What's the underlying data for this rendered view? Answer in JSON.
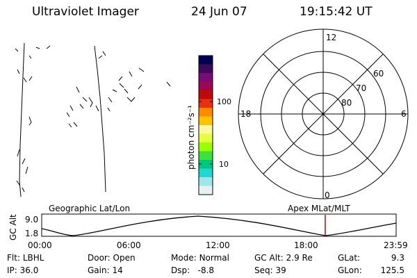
{
  "header": {
    "instrument": "Ultraviolet Imager",
    "date": "24 Jun 07",
    "time": "19:15:42 UT"
  },
  "colorbar": {
    "label": "photon cm⁻²s⁻¹",
    "ticks": [
      "100",
      "10"
    ],
    "colors": [
      "#000050",
      "#3c0a5a",
      "#7a0a78",
      "#9b0a50",
      "#c00a0a",
      "#e83010",
      "#ff8a00",
      "#ffc400",
      "#fff7a0",
      "#e6ff40",
      "#9aff00",
      "#3ee03c",
      "#00c880",
      "#20d8d0",
      "#a0e6e8",
      "#e6f2f2"
    ]
  },
  "polar": {
    "clock_labels": [
      "12",
      "18",
      "6",
      "0"
    ],
    "lat_labels": [
      "60",
      "70",
      "80"
    ]
  },
  "track": {
    "left_title": "Geographic Lat/Lon",
    "right_title": "Apex  MLat/MLT",
    "y_axis_label": "GC Alt",
    "y_ticks": [
      "9.0",
      "1.8"
    ],
    "x_ticks": [
      "00:00",
      "06:00",
      "12:00",
      "18:00",
      "23:59"
    ],
    "current_marker_color": "#cc0000"
  },
  "status": {
    "row1": [
      {
        "key": "Flt:",
        "value": "LBHL"
      },
      {
        "key": "Door:",
        "value": "Open"
      },
      {
        "key": "Mode:",
        "value": "Normal"
      },
      {
        "key": "GC Alt:",
        "value": "2.9 Re"
      },
      {
        "key": "GLat:",
        "value": "9.3"
      }
    ],
    "row2": [
      {
        "key": "IP:",
        "value": "36.0"
      },
      {
        "key": "Gain:",
        "value": "14"
      },
      {
        "key": "Dsp:",
        "value": "-8.8"
      },
      {
        "key": "Seq:",
        "value": "39"
      },
      {
        "key": "GLon:",
        "value": "125.5"
      }
    ]
  }
}
